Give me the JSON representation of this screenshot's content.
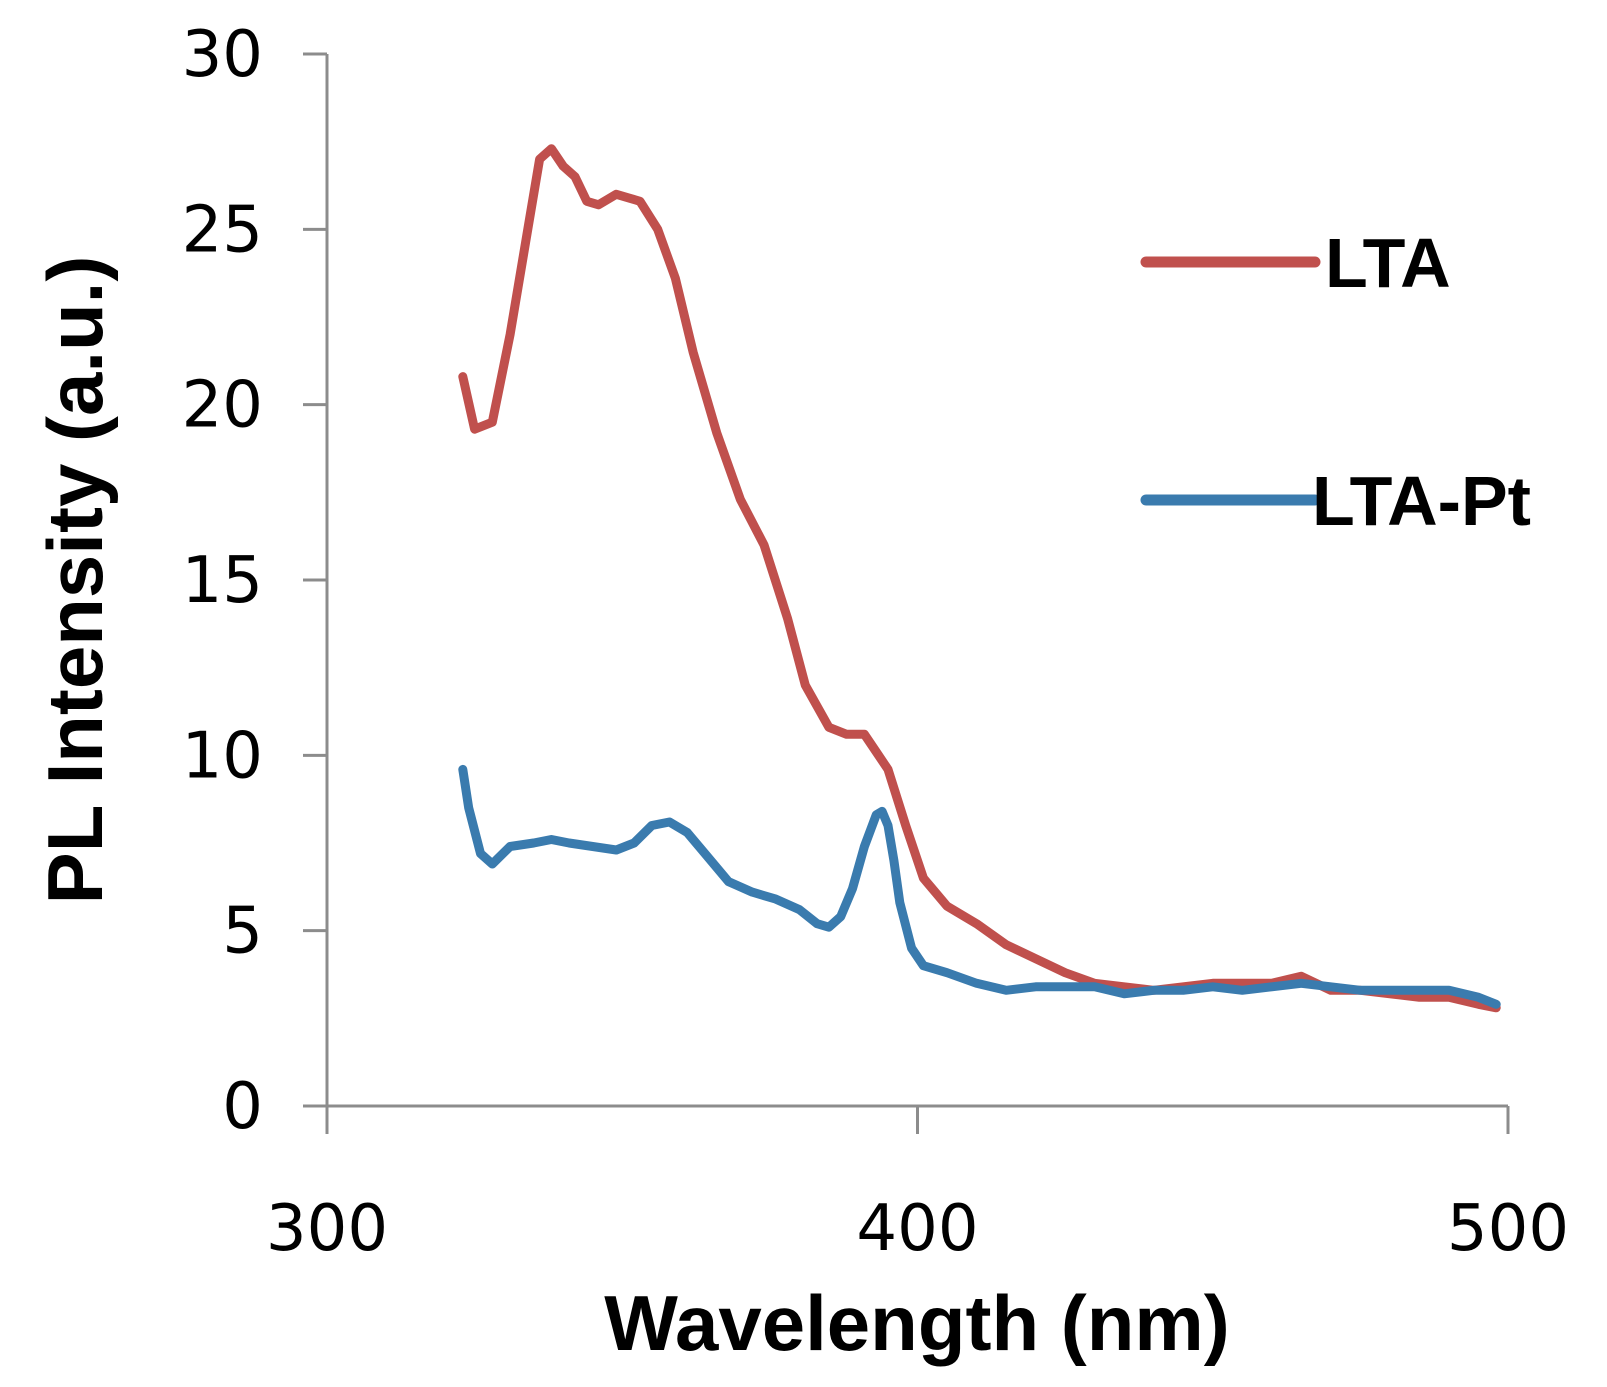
{
  "chart_data": {
    "type": "line",
    "title": "",
    "xlabel": "Wavelength (nm)",
    "ylabel": "PL Intensity (a.u.)",
    "xlim": [
      300,
      500
    ],
    "ylim": [
      0,
      30
    ],
    "xticks": [
      300,
      400,
      500
    ],
    "yticks": [
      0,
      5,
      10,
      15,
      20,
      25,
      30
    ],
    "grid": false,
    "legend_position": "right",
    "series": [
      {
        "name": "LTA",
        "color": "#c0504d",
        "x": [
          323,
          325,
          328,
          331,
          334,
          336,
          338,
          340,
          342,
          344,
          346,
          349,
          351,
          353,
          356,
          359,
          362,
          366,
          370,
          374,
          378,
          381,
          385,
          388,
          391,
          393,
          395,
          398,
          401,
          405,
          410,
          415,
          420,
          425,
          430,
          435,
          440,
          445,
          450,
          455,
          460,
          465,
          470,
          475,
          480,
          485,
          490,
          495,
          498
        ],
        "y": [
          20.8,
          19.3,
          19.5,
          22.0,
          25.0,
          27.0,
          27.3,
          26.8,
          26.5,
          25.8,
          25.7,
          26.0,
          25.9,
          25.8,
          25.0,
          23.6,
          21.5,
          19.2,
          17.3,
          16.0,
          13.9,
          12.0,
          10.8,
          10.6,
          10.6,
          10.1,
          9.6,
          8.0,
          6.5,
          5.7,
          5.2,
          4.6,
          4.2,
          3.8,
          3.5,
          3.4,
          3.3,
          3.4,
          3.5,
          3.5,
          3.5,
          3.7,
          3.3,
          3.3,
          3.2,
          3.1,
          3.1,
          2.9,
          2.8
        ]
      },
      {
        "name": "LTA-Pt",
        "color": "#3a7bae",
        "x": [
          323,
          324,
          326,
          328,
          331,
          335,
          338,
          341,
          345,
          349,
          352,
          355,
          358,
          361,
          364,
          368,
          372,
          376,
          380,
          383,
          385,
          387,
          389,
          391,
          393,
          394,
          395,
          396,
          397,
          399,
          401,
          405,
          410,
          415,
          420,
          425,
          430,
          435,
          440,
          445,
          450,
          455,
          460,
          465,
          470,
          475,
          480,
          485,
          490,
          495,
          498
        ],
        "y": [
          9.6,
          8.5,
          7.2,
          6.9,
          7.4,
          7.5,
          7.6,
          7.5,
          7.4,
          7.3,
          7.5,
          8.0,
          8.1,
          7.8,
          7.2,
          6.4,
          6.1,
          5.9,
          5.6,
          5.2,
          5.1,
          5.4,
          6.2,
          7.4,
          8.3,
          8.4,
          8.0,
          7.0,
          5.8,
          4.5,
          4.0,
          3.8,
          3.5,
          3.3,
          3.4,
          3.4,
          3.4,
          3.2,
          3.3,
          3.3,
          3.4,
          3.3,
          3.4,
          3.5,
          3.4,
          3.3,
          3.3,
          3.3,
          3.3,
          3.1,
          2.9
        ]
      }
    ]
  }
}
